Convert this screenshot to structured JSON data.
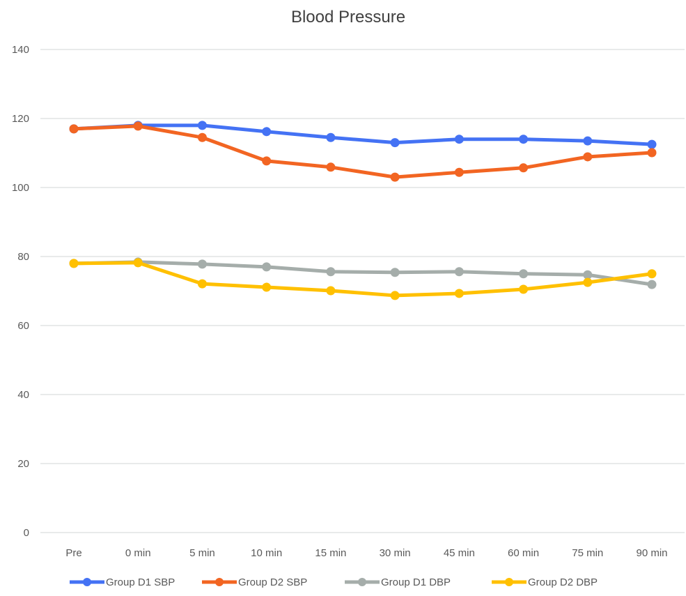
{
  "chart_data": {
    "type": "line",
    "title": "Blood Pressure",
    "xlabel": "",
    "ylabel": "",
    "categories": [
      "Pre",
      "0 min",
      "5 min",
      "10 min",
      "15 min",
      "30 min",
      "45 min",
      "60 min",
      "75 min",
      "90 min"
    ],
    "ylim": [
      0,
      140
    ],
    "yticks": [
      0,
      20,
      40,
      60,
      80,
      100,
      120,
      140
    ],
    "grid": true,
    "legend_position": "bottom",
    "series": [
      {
        "name": "Group D1 SBP",
        "color": "#4472F4",
        "values": [
          117,
          118,
          118,
          116.2,
          114.5,
          113,
          114,
          114,
          113.5,
          112.5
        ]
      },
      {
        "name": "Group D2 SBP",
        "color": "#F26522",
        "values": [
          117,
          117.8,
          114.5,
          107.7,
          105.9,
          103,
          104.4,
          105.7,
          108.9,
          110.1
        ]
      },
      {
        "name": "Group D1 DBP",
        "color": "#A5ADAA",
        "values": [
          78,
          78.4,
          77.8,
          77,
          75.6,
          75.4,
          75.6,
          75,
          74.7,
          71.9
        ]
      },
      {
        "name": "Group D2 DBP",
        "color": "#FFC000",
        "values": [
          78,
          78.2,
          72.1,
          71.1,
          70.1,
          68.7,
          69.3,
          70.5,
          72.5,
          75
        ]
      }
    ]
  }
}
